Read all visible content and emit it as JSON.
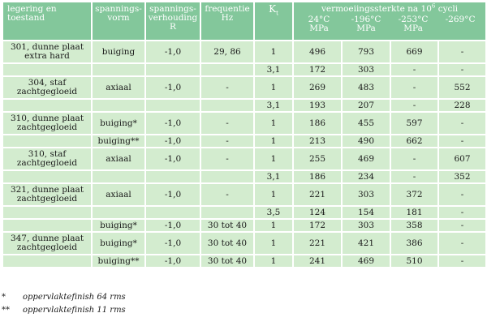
{
  "headers": {
    "material": "legering en\ntoestand",
    "form": "spannings-\nvorm",
    "ratio": "spannings-\nverhouding\nR",
    "frequency": "frequentie\nHz",
    "kt_main": "K",
    "kt_sub": "t",
    "fatigue": "vermoeiingssterkte na 10",
    "fatigue_exp": "6",
    "fatigue_tail": " cycli",
    "temps": [
      {
        "temp": "24°C",
        "unit": "MPa"
      },
      {
        "temp": "-196°C",
        "unit": "MPa"
      },
      {
        "temp": "-253°C",
        "unit": "MPa"
      },
      {
        "temp": "-269°C",
        "unit": ""
      }
    ]
  },
  "rows": [
    {
      "material": "301, dunne plaat\nextra hard",
      "form": "buiging",
      "ratio": "-1,0",
      "freq": "29, 86",
      "kt": "1",
      "v24": "496",
      "v196": "793",
      "v253": "669",
      "v269": "-"
    },
    {
      "material": "",
      "form": "",
      "ratio": "",
      "freq": "",
      "kt": "3,1",
      "v24": "172",
      "v196": "303",
      "v253": "-",
      "v269": "-"
    },
    {
      "material": "304, staf\nzachtgegloeid",
      "form": "axiaal",
      "ratio": "-1,0",
      "freq": "-",
      "kt": "1",
      "v24": "269",
      "v196": "483",
      "v253": "-",
      "v269": "552"
    },
    {
      "material": "",
      "form": "",
      "ratio": "",
      "freq": "",
      "kt": "3,1",
      "v24": "193",
      "v196": "207",
      "v253": "-",
      "v269": "228"
    },
    {
      "material": "310, dunne plaat\nzachtgegloeid",
      "form": "buiging*",
      "ratio": "-1,0",
      "freq": "-",
      "kt": "1",
      "v24": "186",
      "v196": "455",
      "v253": "597",
      "v269": "-"
    },
    {
      "material": "",
      "form": "buiging**",
      "ratio": "-1,0",
      "freq": "-",
      "kt": "1",
      "v24": "213",
      "v196": "490",
      "v253": "662",
      "v269": "-"
    },
    {
      "material": "310, staf\nzachtgegloeid",
      "form": "axiaal",
      "ratio": "-1,0",
      "freq": "-",
      "kt": "1",
      "v24": "255",
      "v196": "469",
      "v253": "-",
      "v269": "607"
    },
    {
      "material": "",
      "form": "",
      "ratio": "",
      "freq": "",
      "kt": "3,1",
      "v24": "186",
      "v196": "234",
      "v253": "-",
      "v269": "352"
    },
    {
      "material": "321, dunne plaat\nzachtgegloeid",
      "form": "axiaal",
      "ratio": "-1,0",
      "freq": "-",
      "kt": "1",
      "v24": "221",
      "v196": "303",
      "v253": "372",
      "v269": "-"
    },
    {
      "material": "",
      "form": "",
      "ratio": "",
      "freq": "",
      "kt": "3,5",
      "v24": "124",
      "v196": "154",
      "v253": "181",
      "v269": "-"
    },
    {
      "material": "",
      "form": "buiging*",
      "ratio": "-1,0",
      "freq": "30 tot 40",
      "kt": "1",
      "v24": "172",
      "v196": "303",
      "v253": "358",
      "v269": "-"
    },
    {
      "material": "347, dunne plaat\nzachtgegloeid",
      "form": "buiging*",
      "ratio": "-1,0",
      "freq": "30 tot 40",
      "kt": "1",
      "v24": "221",
      "v196": "421",
      "v253": "386",
      "v269": "-"
    },
    {
      "material": "",
      "form": "buiging**",
      "ratio": "-1,0",
      "freq": "30 tot 40",
      "kt": "1",
      "v24": "241",
      "v196": "469",
      "v253": "510",
      "v269": "-"
    }
  ],
  "notes": [
    {
      "mark": "*",
      "text": "oppervlaktefinish 64 rms"
    },
    {
      "mark": "**",
      "text": "oppervlaktefinish 11 rms"
    }
  ],
  "colors": {
    "header": "#83c79b",
    "cell": "#d3eccf",
    "grid": "#ffffff"
  }
}
